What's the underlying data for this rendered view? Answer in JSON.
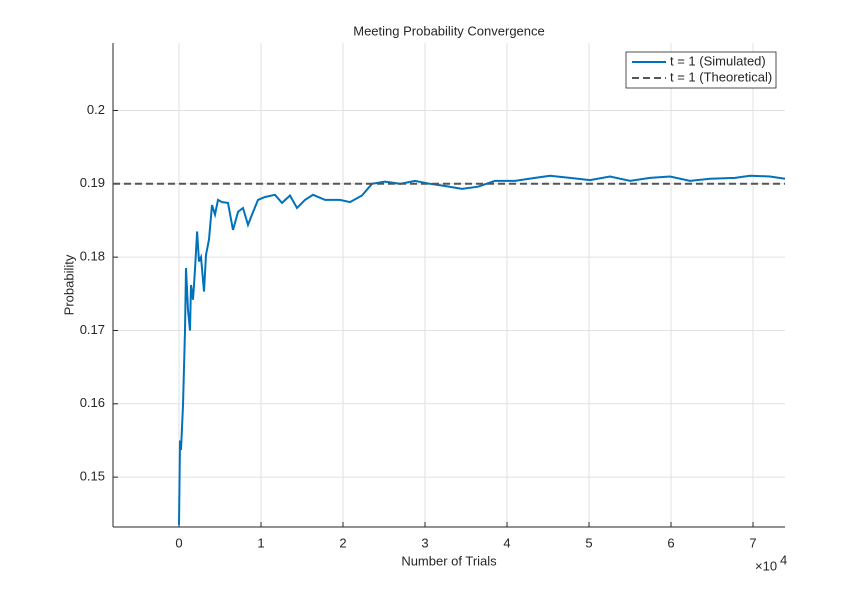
{
  "chart_data": {
    "type": "line",
    "title": "Meeting Probability Convergence",
    "x_label": "Number of Trials",
    "y_label": "Probability",
    "x_scale_base": "×10",
    "x_scale_exponent": "4",
    "xlim": [
      -8050,
      73900
    ],
    "ylim": [
      0.1432,
      0.2092
    ],
    "xticks": [
      {
        "value": 0,
        "label": "0"
      },
      {
        "value": 10000,
        "label": "1"
      },
      {
        "value": 20000,
        "label": "2"
      },
      {
        "value": 30000,
        "label": "3"
      },
      {
        "value": 40000,
        "label": "4"
      },
      {
        "value": 50000,
        "label": "5"
      },
      {
        "value": 60000,
        "label": "6"
      },
      {
        "value": 70000,
        "label": "7"
      }
    ],
    "yticks": [
      0.15,
      0.16,
      0.17,
      0.18,
      0.19,
      0.2
    ],
    "grid": true,
    "legend": "northeast",
    "series": [
      {
        "name": "t = 1 (Simulated)",
        "color": "#0072bd",
        "dash": false,
        "x": [
          0,
          120,
          240,
          490,
          730,
          850,
          1100,
          1340,
          1460,
          1710,
          1950,
          2200,
          2440,
          2680,
          3050,
          3290,
          3660,
          4020,
          4390,
          4760,
          5240,
          5980,
          6590,
          7200,
          7800,
          8410,
          8900,
          9630,
          10490,
          11710,
          12560,
          13540,
          14390,
          15370,
          16340,
          17800,
          19630,
          20850,
          22320,
          23540,
          25120,
          26950,
          28780,
          30610,
          32440,
          34510,
          36460,
          38540,
          40980,
          43410,
          45240,
          47680,
          50120,
          52560,
          55000,
          57440,
          59880,
          62320,
          64760,
          67800,
          69630,
          72070,
          73900
        ],
        "values": [
          0.1435,
          0.155,
          0.1537,
          0.1598,
          0.17,
          0.1785,
          0.1728,
          0.17,
          0.1762,
          0.1742,
          0.1783,
          0.1835,
          0.1794,
          0.18,
          0.1753,
          0.1803,
          0.1824,
          0.1871,
          0.1858,
          0.1878,
          0.1875,
          0.1874,
          0.1837,
          0.1862,
          0.1867,
          0.1844,
          0.1858,
          0.1878,
          0.1882,
          0.1885,
          0.1874,
          0.1884,
          0.1867,
          0.1878,
          0.1885,
          0.1878,
          0.1878,
          0.1875,
          0.1884,
          0.19,
          0.1903,
          0.19,
          0.1904,
          0.19,
          0.1897,
          0.1893,
          0.1896,
          0.1904,
          0.1904,
          0.1908,
          0.1911,
          0.1908,
          0.1905,
          0.191,
          0.1904,
          0.1908,
          0.191,
          0.1904,
          0.1907,
          0.1908,
          0.1911,
          0.191,
          0.1907
        ]
      },
      {
        "name": "t = 1 (Theoretical)",
        "color": "#555555",
        "dash": true,
        "x": [
          -8050,
          73900
        ],
        "values": [
          0.19,
          0.19
        ]
      }
    ]
  }
}
